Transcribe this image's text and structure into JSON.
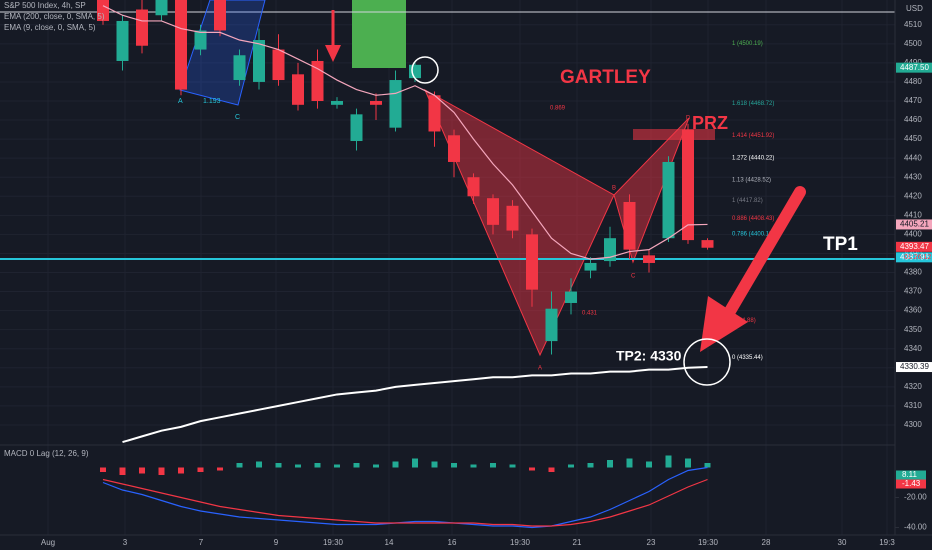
{
  "chart_data": [
    {
      "type": "candlestick",
      "title": "S&P 500 Index, 4h, SP",
      "currency": "USD",
      "up_color": "#22ab94",
      "down_color": "#f23645",
      "open": [
        4523,
        4491,
        4518,
        4515,
        4523,
        4497,
        4523,
        4481,
        4480,
        4497,
        4484,
        4491,
        4468,
        4449,
        4470,
        4456,
        4482,
        4473,
        4452,
        4430,
        4419,
        4415,
        4400,
        4344,
        4364,
        4381,
        4386,
        4417,
        4389,
        4398,
        4455,
        4397
      ],
      "high": [
        4523,
        4515,
        4523,
        4523,
        4523,
        4510,
        4523,
        4497,
        4508,
        4505,
        4490,
        4497,
        4472,
        4466,
        4474,
        4486,
        4490,
        4475,
        4455,
        4432,
        4421,
        4418,
        4403,
        4370,
        4377,
        4388,
        4404,
        4421,
        4392,
        4441,
        4458,
        4398
      ],
      "low": [
        4510,
        4486,
        4495,
        4512,
        4473,
        4494,
        4504,
        4478,
        4476,
        4478,
        4465,
        4466,
        4466,
        4444,
        4460,
        4454,
        4480,
        4446,
        4430,
        4416,
        4400,
        4398,
        4362,
        4337,
        4358,
        4377,
        4383,
        4387,
        4380,
        4396,
        4395,
        4392
      ],
      "close": [
        4512,
        4512,
        4499,
        4523,
        4476,
        4507,
        4507,
        4494,
        4502,
        4481,
        4468,
        4470,
        4470,
        4463,
        4468,
        4481,
        4489,
        4454,
        4438,
        4420,
        4405,
        4402,
        4371,
        4361,
        4370,
        4385,
        4398,
        4392,
        4385,
        4438,
        4397,
        4393
      ],
      "series": [
        {
          "name": "EMA (200, close, 0, SMA, 5)",
          "color": "#ffffff",
          "values": [
            null,
            4291,
            4294,
            4297,
            4299,
            4302,
            4304,
            4306,
            4308,
            4310,
            4312,
            4314,
            4316,
            4317,
            4318,
            4320,
            4321,
            4322,
            4323,
            4324,
            4325,
            4325,
            4326,
            4326,
            4327,
            4327,
            4328,
            4328,
            4329,
            4329,
            4330,
            4330.39
          ]
        },
        {
          "name": "EMA (9, close, 0, SMA, 5)",
          "color": "#f4a6bc",
          "values": [
            4520,
            4515,
            4512,
            4512,
            4508,
            4506,
            4506,
            4502,
            4500,
            4497,
            4492,
            4487,
            4481,
            4476,
            4473,
            4474,
            4478,
            4473,
            4464,
            4450,
            4437,
            4426,
            4412,
            4398,
            4390,
            4387,
            4388,
            4391,
            4392,
            4398,
            4405,
            4405.21
          ]
        }
      ],
      "ylim": [
        4290,
        4523
      ],
      "yticks": [
        4300,
        4310,
        4320,
        4330,
        4340,
        4350,
        4360,
        4370,
        4380,
        4390,
        4400,
        4410,
        4420,
        4430,
        4440,
        4450,
        4460,
        4470,
        4480,
        4490,
        4500,
        4510
      ],
      "grid": true,
      "time_labels": [
        "Aug",
        "3",
        "7",
        "9",
        "19:30",
        "14",
        "16",
        "19:30",
        "21",
        "23",
        "19:30",
        "28",
        "30",
        "19:3"
      ],
      "price_labels": [
        {
          "value": 4487.5,
          "label": "4487.50",
          "color": "#22ab94"
        },
        {
          "value": 4405.21,
          "label": "4405.21",
          "color": "#f4a6bc"
        },
        {
          "value": 4393.47,
          "label": "4393.47",
          "color": "#f23645"
        },
        {
          "value": 4387.96,
          "label": "4387.96",
          "color": "#26c6da"
        },
        {
          "value": 4330.39,
          "label": "4330.39",
          "color": "#ffffff"
        }
      ],
      "countdown": "01:26:12",
      "fib_levels": [
        {
          "value": 4500.19,
          "label": "1 (4500.19)",
          "color": "#4caf50"
        },
        {
          "value": 4468.72,
          "label": "1.618 (4468.72)",
          "color": "#26a69a"
        },
        {
          "value": 4451.92,
          "label": "1.414 (4451.92)",
          "color": "#f23645"
        },
        {
          "value": 4440.22,
          "label": "1.272 (4440.22)",
          "color": "#ffffff"
        },
        {
          "value": 4428.52,
          "label": "1.13 (4428.52)",
          "color": "#b2b5be"
        },
        {
          "value": 4417.82,
          "label": "1 (4417.82)",
          "color": "#787b86"
        },
        {
          "value": 4408.43,
          "label": "0.886 (4408.43)",
          "color": "#f23645"
        },
        {
          "value": 4400.19,
          "label": "0.786 (4400.19)",
          "color": "#26c6da"
        },
        {
          "value": 4354.88,
          "label": "4354.88)",
          "color": "#f23645"
        },
        {
          "value": 4335.44,
          "label": "0 (4335.44)",
          "color": "#ffffff"
        }
      ],
      "annotations": {
        "pattern": "GARTLEY",
        "zone": "PRZ",
        "tp1": "TP1",
        "tp2": "TP2: 4330"
      },
      "pattern_labels": {
        "a": "A",
        "b": "B",
        "c": "C",
        "d": "D",
        "ratio_xb": "0.869",
        "ratio_ac": "0.431",
        "old_a": "A",
        "old_ratio": "1.193",
        "old_c": "C"
      }
    },
    {
      "type": "bar",
      "title": "MACD 0 Lag (12, 26, 9)",
      "values": [
        -3,
        -5,
        -4,
        -5,
        -4,
        -3,
        -2,
        3,
        4,
        3,
        2,
        3,
        2,
        3,
        2,
        4,
        6,
        4,
        3,
        2,
        3,
        2,
        -2,
        -3,
        2,
        3,
        5,
        6,
        4,
        8,
        6,
        3
      ],
      "colors": {
        "up": "#22ab94",
        "down": "#f23645"
      },
      "series": [
        {
          "name": "MACD",
          "color": "#2962ff",
          "values": [
            -10,
            -15,
            -18,
            -22,
            -26,
            -29,
            -31,
            -33,
            -34,
            -35,
            -36,
            -37,
            -38,
            -38,
            -38,
            -37,
            -36,
            -36,
            -37,
            -38,
            -39,
            -39,
            -40,
            -39,
            -36,
            -33,
            -28,
            -22,
            -16,
            -8,
            -2,
            0
          ]
        },
        {
          "name": "Signal",
          "color": "#f23645",
          "values": [
            -8,
            -11,
            -14,
            -17,
            -20,
            -23,
            -26,
            -28,
            -30,
            -32,
            -33,
            -34,
            -35,
            -36,
            -37,
            -37,
            -37,
            -37,
            -37,
            -37,
            -38,
            -38,
            -39,
            -39,
            -38,
            -36,
            -33,
            -29,
            -25,
            -19,
            -13,
            -8
          ]
        }
      ],
      "last_values": [
        8.11,
        -1.43
      ],
      "ylim": [
        -45,
        15
      ],
      "yticks": [
        {
          "value": -20,
          "label": "-20.00"
        },
        {
          "value": -40,
          "label": "-40.00"
        }
      ]
    }
  ]
}
